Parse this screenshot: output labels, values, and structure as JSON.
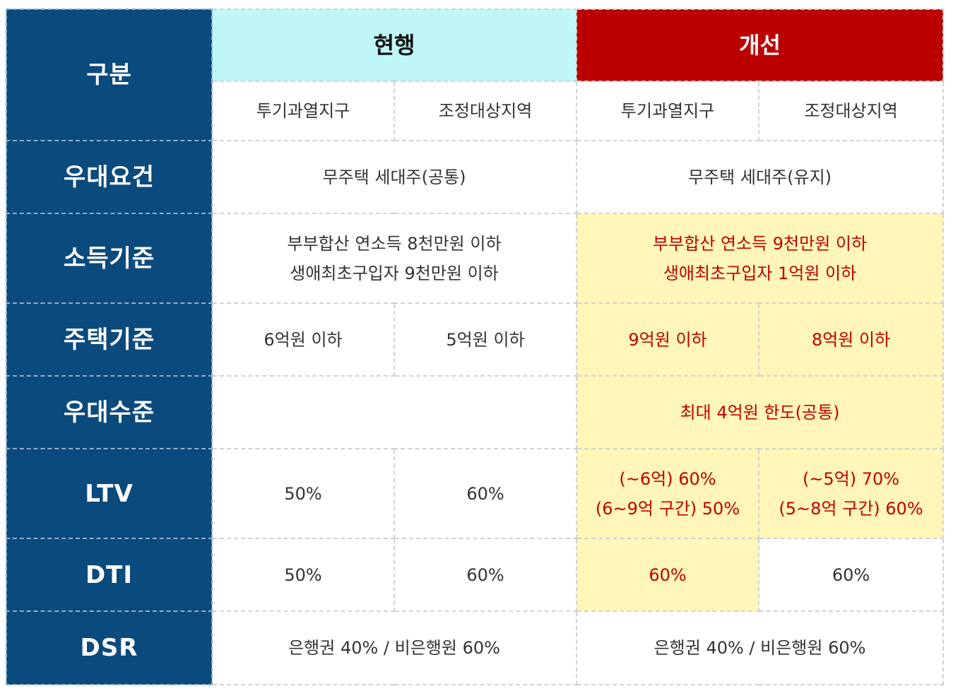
{
  "header": {
    "category_label": "구분",
    "current_label": "현행",
    "improved_label": "개선",
    "current_sub": [
      "투기과열지구",
      "조정대상지역"
    ],
    "improved_sub": [
      "투기과열지구",
      "조정대상지역"
    ]
  },
  "rows": {
    "eligibility": {
      "label": "우대요건",
      "current": "무주택 세대주(공통)",
      "improved": "무주택 세대주(유지)"
    },
    "income": {
      "label": "소득기준",
      "current": [
        "부부합산 연소득 8천만원 이하",
        "생애최초구입자 9천만원 이하"
      ],
      "improved": [
        "부부합산 연소득 9천만원 이하",
        "생애최초구입자 1억원 이하"
      ]
    },
    "house": {
      "label": "주택기준",
      "current": [
        "6억원 이하",
        "5억원 이하"
      ],
      "improved": [
        "9억원 이하",
        "8억원 이하"
      ]
    },
    "benefit": {
      "label": "우대수준",
      "current": "",
      "improved": "최대 4억원 한도(공통)"
    },
    "ltv": {
      "label": "LTV",
      "current": [
        "50%",
        "60%"
      ],
      "improved_speculative": [
        "(~6억) 60%",
        "(6~9억 구간) 50%"
      ],
      "improved_adjusted": [
        "(~5억) 70%",
        "(5~8억 구간) 60%"
      ]
    },
    "dti": {
      "label": "DTI",
      "current": [
        "50%",
        "60%"
      ],
      "improved": [
        "60%",
        "60%"
      ]
    },
    "dsr": {
      "label": "DSR",
      "current": "은행권 40% / 비은행원 60%",
      "improved": "은행권 40% / 비은행원 60%"
    }
  },
  "colors": {
    "row_header_bg": "#0b4a7d",
    "current_header_bg": "#bff7f7",
    "improved_header_bg": "#bb0000",
    "highlight_bg": "#fff6b8",
    "highlight_text": "#c00000"
  }
}
